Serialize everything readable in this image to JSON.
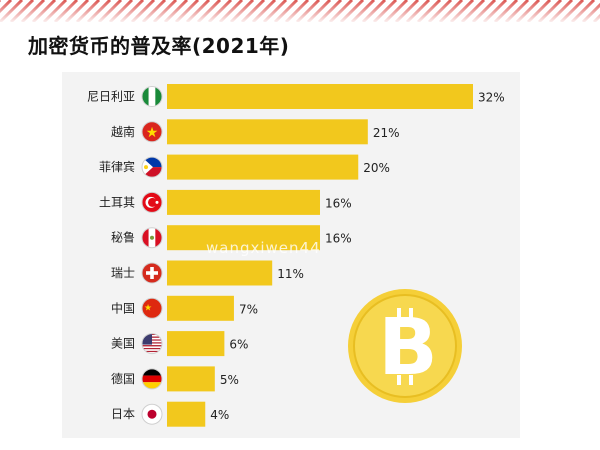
{
  "title": "加密货币的普及率(2021年)",
  "watermark": "wangxiwen44",
  "colors": {
    "bar": "#f2c81d",
    "stripe": "#d63a35",
    "panel": "#f3f3f3"
  },
  "coin_icon": "bitcoin-icon",
  "chart_data": {
    "type": "bar",
    "orientation": "horizontal",
    "title": "",
    "xlabel": "",
    "ylabel": "",
    "xlim": [
      0,
      32
    ],
    "grid": false,
    "value_suffix": "%",
    "categories": [
      "尼日利亚",
      "越南",
      "菲律宾",
      "土耳其",
      "秘鲁",
      "瑞士",
      "中国",
      "美国",
      "德国",
      "日本"
    ],
    "values": [
      32,
      21,
      20,
      16,
      16,
      11,
      7,
      6,
      5,
      4
    ],
    "value_labels": [
      "32%",
      "21%",
      "20%",
      "16%",
      "16%",
      "11%",
      "7%",
      "6%",
      "5%",
      "4%"
    ],
    "flags": [
      "nigeria-flag-icon",
      "vietnam-flag-icon",
      "philippines-flag-icon",
      "turkey-flag-icon",
      "peru-flag-icon",
      "switzerland-flag-icon",
      "china-flag-icon",
      "usa-flag-icon",
      "germany-flag-icon",
      "japan-flag-icon"
    ]
  }
}
